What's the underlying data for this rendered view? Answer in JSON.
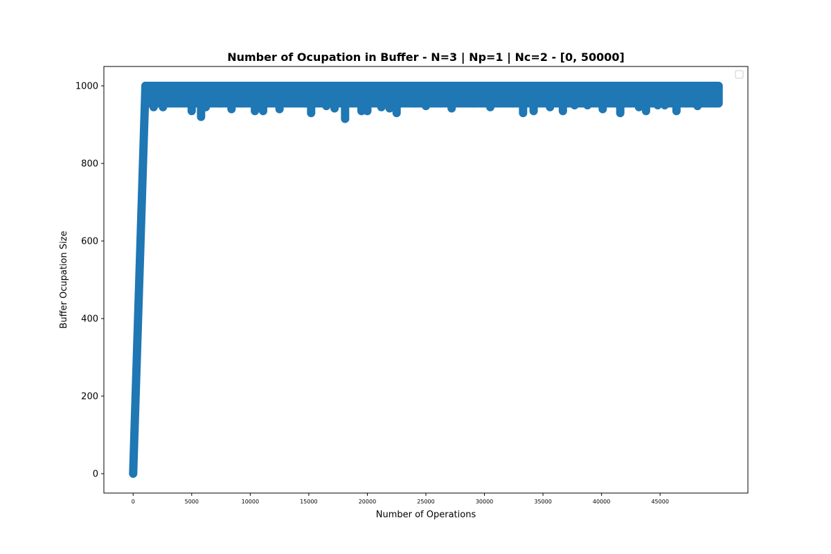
{
  "chart_data": {
    "type": "scatter",
    "title": "Number of Ocupation in Buffer - N=3 | Np=1 | Nc=2 - [0, 50000]",
    "xlabel": "Number of Operations",
    "ylabel": "Buffer Ocupation Size",
    "xlim": [
      -2500,
      52500
    ],
    "ylim": [
      -50,
      1050
    ],
    "xticks": [
      0,
      5000,
      10000,
      15000,
      20000,
      25000,
      30000,
      35000,
      40000,
      45000
    ],
    "xtick_labels": [
      "0",
      "5000",
      "10000",
      "15000",
      "20000",
      "25000",
      "30000",
      "35000",
      "40000",
      "45000"
    ],
    "yticks": [
      0,
      200,
      400,
      600,
      800,
      1000
    ],
    "ytick_labels": [
      "0",
      "200",
      "400",
      "600",
      "800",
      "1000"
    ],
    "grid": false,
    "legend": {
      "placement": "top-right",
      "entries": []
    },
    "series": [
      {
        "color": "#1f77b4",
        "ramp": {
          "x": [
            0,
            1050
          ],
          "y": [
            0,
            1000
          ]
        },
        "plateau": {
          "x": [
            1050,
            50000
          ],
          "y_max": 1000,
          "typical_min": 955
        },
        "dips": [
          {
            "x": 1750,
            "y": 945
          },
          {
            "x": 2550,
            "y": 945
          },
          {
            "x": 3500,
            "y": 965
          },
          {
            "x": 5000,
            "y": 935
          },
          {
            "x": 5800,
            "y": 920
          },
          {
            "x": 6200,
            "y": 945
          },
          {
            "x": 7400,
            "y": 955
          },
          {
            "x": 8400,
            "y": 940
          },
          {
            "x": 9200,
            "y": 958
          },
          {
            "x": 10400,
            "y": 935
          },
          {
            "x": 11100,
            "y": 935
          },
          {
            "x": 12500,
            "y": 940
          },
          {
            "x": 14700,
            "y": 960
          },
          {
            "x": 15200,
            "y": 930
          },
          {
            "x": 16500,
            "y": 948
          },
          {
            "x": 17200,
            "y": 942
          },
          {
            "x": 18100,
            "y": 915
          },
          {
            "x": 19500,
            "y": 935
          },
          {
            "x": 20000,
            "y": 935
          },
          {
            "x": 21200,
            "y": 945
          },
          {
            "x": 21900,
            "y": 942
          },
          {
            "x": 22500,
            "y": 930
          },
          {
            "x": 24000,
            "y": 958
          },
          {
            "x": 25000,
            "y": 948
          },
          {
            "x": 26200,
            "y": 962
          },
          {
            "x": 27200,
            "y": 942
          },
          {
            "x": 29000,
            "y": 955
          },
          {
            "x": 30500,
            "y": 945
          },
          {
            "x": 31200,
            "y": 962
          },
          {
            "x": 32400,
            "y": 955
          },
          {
            "x": 33300,
            "y": 930
          },
          {
            "x": 34200,
            "y": 935
          },
          {
            "x": 35600,
            "y": 945
          },
          {
            "x": 36700,
            "y": 935
          },
          {
            "x": 37700,
            "y": 950
          },
          {
            "x": 38800,
            "y": 950
          },
          {
            "x": 40100,
            "y": 940
          },
          {
            "x": 41600,
            "y": 930
          },
          {
            "x": 42400,
            "y": 962
          },
          {
            "x": 43200,
            "y": 945
          },
          {
            "x": 43800,
            "y": 935
          },
          {
            "x": 44800,
            "y": 950
          },
          {
            "x": 45400,
            "y": 950
          },
          {
            "x": 46400,
            "y": 935
          },
          {
            "x": 47200,
            "y": 962
          },
          {
            "x": 48200,
            "y": 948
          },
          {
            "x": 49000,
            "y": 958
          },
          {
            "x": 49800,
            "y": 958
          }
        ]
      }
    ]
  }
}
